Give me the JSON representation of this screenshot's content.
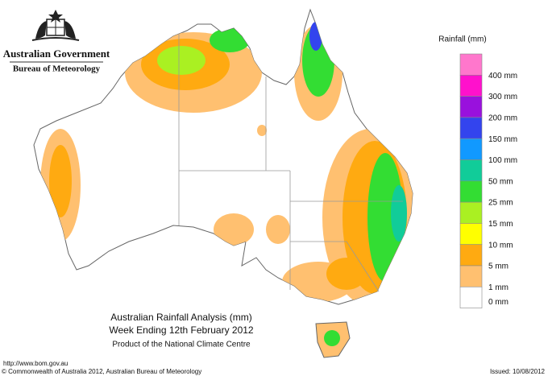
{
  "header": {
    "agency": "Australian Government",
    "bureau": "Bureau of Meteorology"
  },
  "legend": {
    "title": "Rainfall (mm)",
    "colors": [
      "#ff77cc",
      "#ff11cc",
      "#9911dd",
      "#3344ee",
      "#1199ff",
      "#11cc99",
      "#33dd33",
      "#aaf022",
      "#ffff00",
      "#ffaa11",
      "#ffc070",
      "#ffffff"
    ],
    "labels": [
      "400 mm",
      "300 mm",
      "200 mm",
      "150 mm",
      "100 mm",
      "50 mm",
      "25 mm",
      "15 mm",
      "10 mm",
      "5 mm",
      "1 mm",
      "0 mm"
    ]
  },
  "title": {
    "line1": "Australian Rainfall Analysis (mm)",
    "line2": "Week Ending 12th February 2012",
    "line3": "Product of the National Climate Centre"
  },
  "footer": {
    "url": "http://www.bom.gov.au",
    "copyright": "© Commonwealth of Australia 2012, Australian Bureau of Meteorology",
    "issued": "Issued: 10/08/2012"
  }
}
